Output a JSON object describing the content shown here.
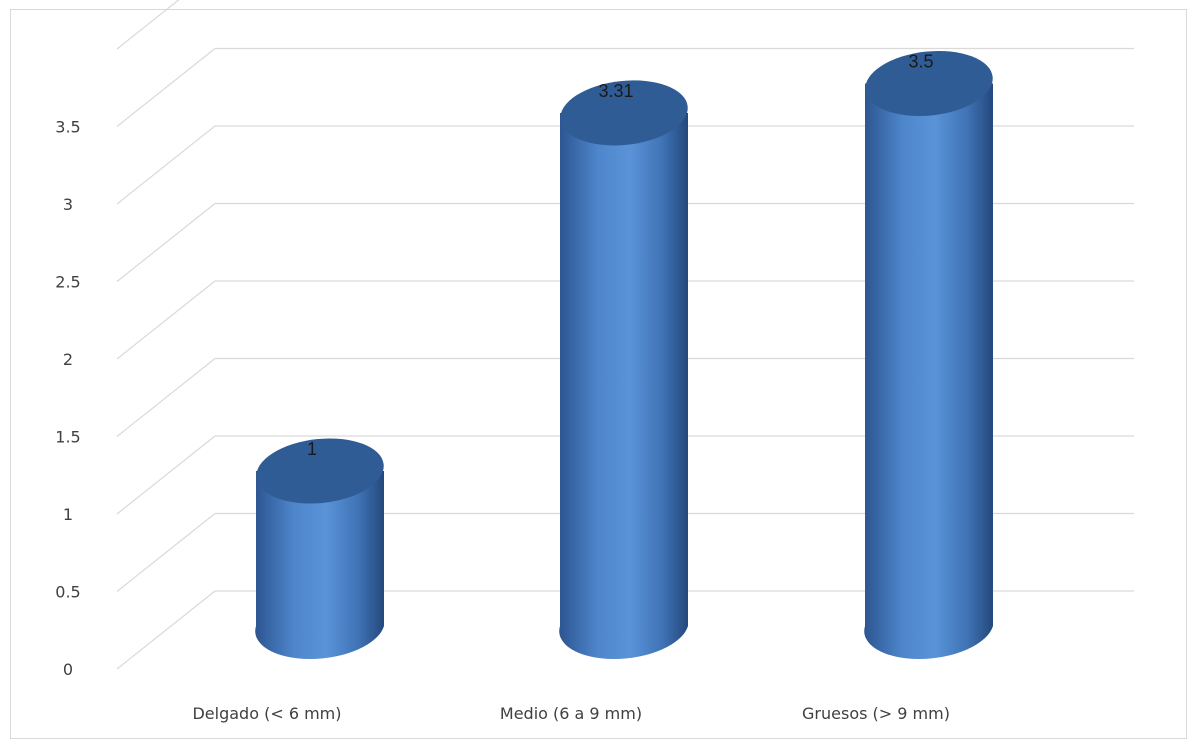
{
  "chart_data": {
    "type": "bar",
    "style": "3d-cylinder",
    "categories": [
      "Delgado (< 6 mm)",
      "Medio (6 a 9 mm)",
      "Gruesos (> 9 mm)"
    ],
    "values": [
      1,
      3.31,
      3.5
    ],
    "data_labels": [
      "1",
      "3.31",
      "3.5"
    ],
    "y_ticks": [
      "0",
      "0.5",
      "1",
      "1.5",
      "2",
      "2.5",
      "3",
      "3.5"
    ],
    "ylim": [
      0,
      4
    ],
    "grid": true,
    "legend": false,
    "bar_color": "#4a7fc4",
    "top_color": "#2f5c94"
  }
}
